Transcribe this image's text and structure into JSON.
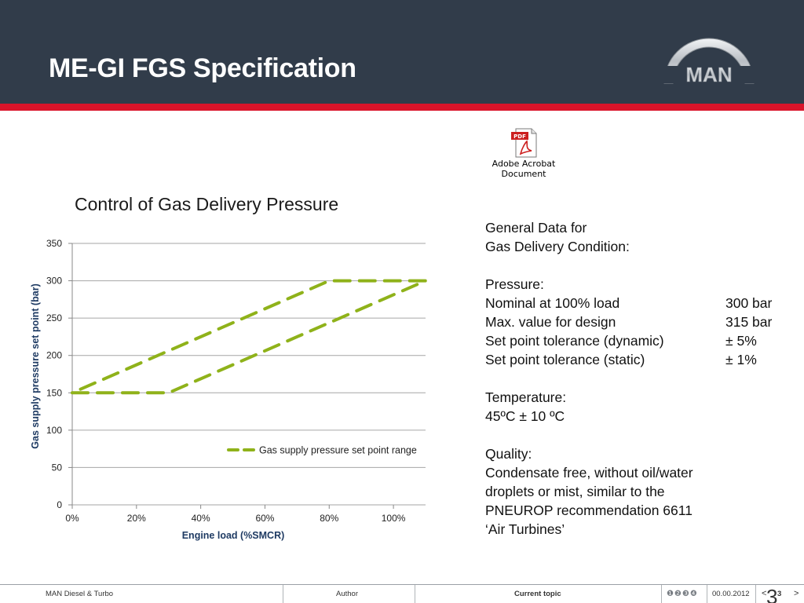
{
  "header": {
    "title": "ME-GI FGS Specification",
    "logo_text": "MAN"
  },
  "attachment": {
    "badge": "PDF",
    "caption_line1": "Adobe Acrobat",
    "caption_line2": "Document",
    "icon": "pdf-file-icon"
  },
  "chart_title": "Control of Gas Delivery Pressure",
  "chart_data": {
    "type": "line",
    "title": "Control of Gas Delivery Pressure",
    "xlabel": "Engine load (%SMCR)",
    "ylabel": "Gas supply pressure set point (bar)",
    "xlim": [
      0,
      110
    ],
    "ylim": [
      0,
      350
    ],
    "x_ticks": [
      "0%",
      "20%",
      "40%",
      "60%",
      "80%",
      "100%"
    ],
    "y_ticks": [
      "0",
      "50",
      "100",
      "150",
      "200",
      "250",
      "300",
      "350"
    ],
    "grid": "horizontal",
    "legend_position": "right",
    "series": [
      {
        "name": "Gas supply pressure set point range",
        "color": "#8fb21a",
        "dash": true,
        "x": [
          0,
          30,
          110,
          110,
          80,
          0,
          0
        ],
        "y": [
          150,
          150,
          300,
          300,
          300,
          150,
          150
        ]
      }
    ]
  },
  "info": {
    "intro1": "General Data for",
    "intro2": "Gas Delivery Condition:",
    "pressure_heading": "Pressure:",
    "rows": [
      {
        "label": "Nominal  at 100% load",
        "value": "300 bar"
      },
      {
        "label": "Max. value  for design",
        "value": "315 bar"
      },
      {
        "label": "Set point tolerance (dynamic)",
        "value": "± 5%"
      },
      {
        "label": "Set point tolerance (static)",
        "value": "± 1%"
      }
    ],
    "temperature_heading": "Temperature:",
    "temperature_value": "45ºC ± 10 ºC",
    "quality_heading": "Quality:",
    "quality_lines": [
      "Condensate free, without oil/water",
      "droplets or mist, similar to the",
      "PNEUROP recommendation 6611",
      "‘Air Turbines’"
    ]
  },
  "footer": {
    "company": "MAN Diesel & Turbo",
    "author": "Author",
    "current_topic": "Current topic",
    "topic_dots": "❶❷❸❹",
    "date": "00.00.2012",
    "prev": "<",
    "page": "3",
    "next": ">",
    "big_page": "3"
  },
  "colors": {
    "header_bg": "#313c4a",
    "accent_red": "#d9142a",
    "series_green": "#8fb21a"
  }
}
